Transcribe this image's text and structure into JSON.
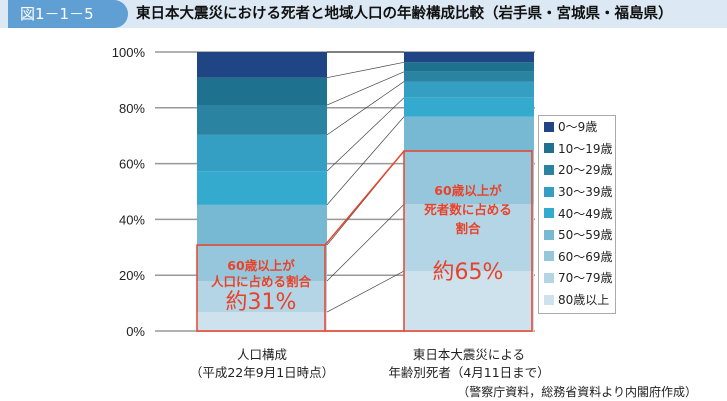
{
  "header": {
    "figure_no": "図1－1－5",
    "title": "東日本大震災における死者と地域人口の年齢構成比較（岩手県・宮城県・福島県）"
  },
  "chart_data": {
    "type": "bar",
    "stacked": true,
    "categories": [
      "人口構成\n（平成22年9月1日時点）",
      "東日本大震災による\n年齢別死者（4月11日まで）"
    ],
    "category_lines": [
      [
        "人口構成",
        "（平成22年9月1日時点）"
      ],
      [
        "東日本大震災による",
        "年齢別死者（4月11日まで）"
      ]
    ],
    "yticks": [
      "0%",
      "20%",
      "40%",
      "60%",
      "80%",
      "100%"
    ],
    "ylim": [
      0,
      100
    ],
    "series": [
      {
        "name": "80歳以上",
        "color": "#cde2ed",
        "values": [
          6.8,
          21.5
        ]
      },
      {
        "name": "70～79歳",
        "color": "#b3d5e5",
        "values": [
          11.1,
          23.9
        ]
      },
      {
        "name": "60～69歳",
        "color": "#96c6db",
        "values": [
          12.9,
          19.1
        ]
      },
      {
        "name": "50～59歳",
        "color": "#77b8d3",
        "values": [
          14.4,
          12.3
        ]
      },
      {
        "name": "40～49歳",
        "color": "#34aace",
        "values": [
          12.1,
          6.8
        ]
      },
      {
        "name": "30～39歳",
        "color": "#359fc3",
        "values": [
          13.0,
          5.8
        ]
      },
      {
        "name": "20～29歳",
        "color": "#2a83a0",
        "values": [
          10.7,
          3.5
        ]
      },
      {
        "name": "10～19歳",
        "color": "#1e728f",
        "values": [
          9.8,
          3.4
        ]
      },
      {
        "name": "0～9歳",
        "color": "#1f4585",
        "values": [
          9.2,
          3.7
        ]
      }
    ],
    "legend_position": "right"
  },
  "annotations": {
    "left_line1": "60歳以上が",
    "left_line2": "人口に占める割合",
    "left_value": "約31%",
    "right_line1": "60歳以上が",
    "right_line2": "死者数に占める",
    "right_line3": "割合",
    "right_value": "約65%",
    "color": "#e8432a"
  },
  "source": "（警察庁資料，総務省資料より内閣府作成）"
}
